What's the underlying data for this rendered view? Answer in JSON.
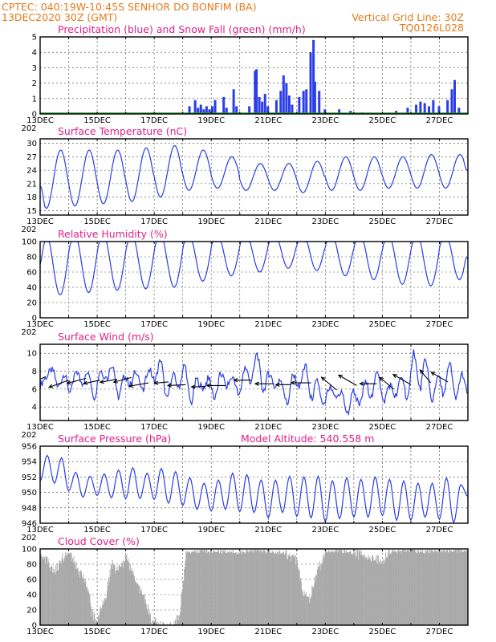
{
  "header": {
    "line1_left": "CPTEC:  040:19W-10:45S  SENHOR DO BONFIM (BA)",
    "line2_left": "13DEC2020 30Z (GMT)",
    "line2_right": "Vertical Grid Line: 30Z",
    "line3_right": "TQ0126L028"
  },
  "colors": {
    "header": "#e87a1a",
    "panel_title": "#e0208a",
    "line": "#2a3de8",
    "precip_bar": "#2a3de8",
    "snow": "#1a9a2a",
    "cloud_bar": "#a9a9a9"
  },
  "xaxis": {
    "labels": [
      "13DEC",
      "15DEC",
      "17DEC",
      "19DEC",
      "21DEC",
      "23DEC",
      "25DEC",
      "27DEC"
    ],
    "stub": "202"
  },
  "chart_data": [
    {
      "id": "precip",
      "type": "bar",
      "title": "Precipitation (blue) and Snow Fall (green) (mm/h)",
      "ylim": [
        0,
        5
      ],
      "yticks": [
        0,
        1,
        2,
        3,
        4,
        5
      ],
      "x_days": [
        0,
        15
      ],
      "grid": true,
      "bars": [
        [
          5.25,
          0.5
        ],
        [
          5.45,
          0.9
        ],
        [
          5.55,
          0.4
        ],
        [
          5.65,
          0.6
        ],
        [
          5.75,
          0.3
        ],
        [
          5.85,
          0.5
        ],
        [
          5.95,
          0.3
        ],
        [
          6.05,
          0.5
        ],
        [
          6.15,
          0.9
        ],
        [
          6.45,
          1.1
        ],
        [
          6.55,
          0.4
        ],
        [
          6.8,
          1.6
        ],
        [
          6.9,
          0.5
        ],
        [
          7.35,
          0.5
        ],
        [
          7.55,
          2.8
        ],
        [
          7.6,
          2.9
        ],
        [
          7.7,
          1.1
        ],
        [
          7.8,
          0.8
        ],
        [
          7.9,
          1.3
        ],
        [
          8.0,
          0.5
        ],
        [
          8.3,
          0.9
        ],
        [
          8.45,
          1.5
        ],
        [
          8.55,
          2.5
        ],
        [
          8.65,
          2.0
        ],
        [
          8.75,
          1.2
        ],
        [
          8.85,
          0.6
        ],
        [
          9.1,
          1.1
        ],
        [
          9.25,
          1.5
        ],
        [
          9.35,
          1.6
        ],
        [
          9.5,
          4.0
        ],
        [
          9.6,
          4.8
        ],
        [
          9.65,
          2.1
        ],
        [
          9.8,
          1.5
        ],
        [
          10.0,
          0.3
        ],
        [
          10.5,
          0.3
        ],
        [
          10.9,
          0.2
        ],
        [
          11.3,
          0.1
        ],
        [
          12.5,
          0.2
        ],
        [
          12.9,
          0.4
        ],
        [
          13.2,
          0.6
        ],
        [
          13.35,
          0.8
        ],
        [
          13.5,
          0.7
        ],
        [
          13.65,
          0.5
        ],
        [
          13.8,
          0.9
        ],
        [
          14.0,
          0.5
        ],
        [
          14.3,
          0.9
        ],
        [
          14.45,
          1.6
        ],
        [
          14.55,
          2.2
        ],
        [
          14.7,
          0.4
        ]
      ],
      "snow": 0
    },
    {
      "id": "temp",
      "type": "line",
      "title": "Surface Temperature (nC)",
      "ylim": [
        14,
        31
      ],
      "yticks": [
        15,
        18,
        21,
        24,
        27,
        30
      ],
      "x_days": [
        0,
        15
      ],
      "grid": true,
      "daily_min": [
        15.5,
        16,
        16.5,
        17,
        18,
        19.5,
        20,
        19.5,
        19.5,
        19,
        19.5,
        19.5,
        20,
        20,
        20
      ],
      "daily_max": [
        28.5,
        28.5,
        28.5,
        29,
        29.5,
        28.5,
        27,
        25.5,
        25.5,
        26,
        27,
        27,
        27,
        27.5,
        27.5
      ],
      "start": 20.5,
      "end": 24
    },
    {
      "id": "rh",
      "type": "line",
      "title": "Relative Humidity (%)",
      "ylim": [
        0,
        100
      ],
      "yticks": [
        0,
        20,
        40,
        60,
        80,
        100
      ],
      "x_days": [
        0,
        15
      ],
      "grid": true,
      "daily_min": [
        30,
        33,
        36,
        38,
        40,
        48,
        55,
        60,
        65,
        62,
        55,
        50,
        44,
        42,
        50
      ],
      "daily_max": [
        100,
        100,
        100,
        100,
        100,
        100,
        100,
        100,
        100,
        100,
        100,
        100,
        100,
        100,
        100
      ],
      "start": 70,
      "end": 78
    },
    {
      "id": "wind",
      "type": "line",
      "title": "Surface Wind (m/s)",
      "ylim": [
        2.5,
        11
      ],
      "yticks": [
        4,
        6,
        8,
        10
      ],
      "x_days": [
        0,
        15
      ],
      "grid": true,
      "speeds": [
        6.5,
        7.4,
        8.2,
        6.3,
        7.6,
        5.6,
        8.0,
        6.7,
        7.9,
        5.2,
        8.1,
        7.2,
        8.8,
        5.1,
        7.4,
        6.5,
        8.1,
        5.7,
        8.3,
        7.0,
        9.1,
        4.9,
        7.6,
        6.3,
        8.7,
        4.4,
        7.0,
        6.1,
        7.2,
        5.0,
        7.7,
        6.4,
        7.4,
        5.3,
        8.4,
        6.8,
        9.9,
        5.8,
        7.8,
        6.3,
        7.0,
        4.4,
        7.5,
        6.2,
        8.6,
        4.9,
        6.9,
        4.0,
        6.1,
        5.0,
        5.7,
        3.3,
        5.8,
        4.2,
        6.7,
        5.1,
        8.1,
        4.6,
        6.5,
        5.2,
        7.4,
        4.8,
        10.2,
        6.0,
        9.3,
        4.6,
        7.5,
        5.4,
        8.9,
        4.8,
        7.7,
        5.5
      ],
      "barbs": [
        [
          0.2,
          7.4,
          205,
          4.6
        ],
        [
          1.0,
          7.0,
          200,
          4.0
        ],
        [
          1.6,
          7.2,
          195,
          3.7
        ],
        [
          2.1,
          7.0,
          192,
          3.2
        ],
        [
          2.7,
          7.1,
          190,
          3.3
        ],
        [
          3.2,
          7.3,
          195,
          3.5
        ],
        [
          3.8,
          6.7,
          190,
          3.7
        ],
        [
          4.5,
          6.8,
          185,
          2.7
        ],
        [
          5.1,
          6.5,
          183,
          3.4
        ],
        [
          5.8,
          6.3,
          182,
          2.7
        ],
        [
          6.5,
          6.4,
          180,
          3.6
        ],
        [
          7.4,
          7.0,
          180,
          3.3
        ],
        [
          8.2,
          6.6,
          180,
          3.6
        ],
        [
          8.8,
          6.5,
          180,
          2.9
        ],
        [
          9.5,
          6.7,
          180,
          3.8
        ],
        [
          10.4,
          5.9,
          140,
          3.8
        ],
        [
          11.1,
          6.4,
          150,
          4.0
        ],
        [
          11.8,
          6.6,
          180,
          3.2
        ],
        [
          12.4,
          6.0,
          140,
          3.5
        ],
        [
          13.0,
          6.5,
          150,
          3.9
        ],
        [
          13.7,
          6.7,
          130,
          3.2
        ],
        [
          14.3,
          6.8,
          150,
          3.7
        ]
      ]
    },
    {
      "id": "pressure",
      "type": "line",
      "title": "Surface Pressure (hPa)",
      "subtitle": "Model Altitude: 540.558 m",
      "ylim": [
        946,
        956
      ],
      "yticks": [
        946,
        948,
        950,
        952,
        954,
        956
      ],
      "x_days": [
        0,
        15
      ],
      "grid": true,
      "series": [
        951.5,
        954.8,
        951.2,
        954.5,
        950.2,
        952.6,
        949.4,
        952.1,
        949.6,
        952.4,
        949.3,
        952.9,
        949.2,
        953.2,
        949.2,
        952.5,
        949.1,
        953.1,
        948.6,
        952.7,
        948.3,
        951.9,
        947.8,
        951.2,
        947.6,
        951.6,
        947.8,
        952.5,
        947.5,
        952.3,
        947.4,
        951.6,
        946.7,
        951.6,
        947.4,
        952.1,
        946.9,
        952.0,
        946.7,
        952.1,
        946.2,
        951.5,
        946.6,
        951.9,
        946.8,
        951.7,
        946.8,
        952.0,
        947.0,
        951.7,
        946.4,
        951.5,
        946.4,
        951.2,
        946.8,
        951.2,
        946.5,
        951.9,
        946.1,
        951.0,
        949.5
      ]
    },
    {
      "id": "cloud",
      "type": "bar",
      "title": "Cloud Cover (%)",
      "ylim": [
        0,
        100
      ],
      "yticks": [
        0,
        20,
        40,
        60,
        80,
        100
      ],
      "x_days": [
        0,
        15
      ],
      "grid": true,
      "profile": [
        [
          0.0,
          95
        ],
        [
          0.3,
          80
        ],
        [
          0.5,
          70
        ],
        [
          0.7,
          85
        ],
        [
          1.0,
          96
        ],
        [
          1.3,
          75
        ],
        [
          1.5,
          60
        ],
        [
          1.7,
          45
        ],
        [
          1.8,
          15
        ],
        [
          2.0,
          5
        ],
        [
          2.1,
          20
        ],
        [
          2.3,
          40
        ],
        [
          2.5,
          80
        ],
        [
          2.7,
          70
        ],
        [
          3.0,
          88
        ],
        [
          3.3,
          60
        ],
        [
          3.6,
          40
        ],
        [
          3.8,
          20
        ],
        [
          3.9,
          5
        ],
        [
          4.2,
          0
        ],
        [
          4.7,
          0
        ],
        [
          4.9,
          20
        ],
        [
          5.1,
          95
        ],
        [
          5.5,
          97
        ],
        [
          6.5,
          97
        ],
        [
          7.0,
          95
        ],
        [
          7.5,
          98
        ],
        [
          8.0,
          97
        ],
        [
          8.5,
          95
        ],
        [
          9.0,
          85
        ],
        [
          9.2,
          45
        ],
        [
          9.4,
          30
        ],
        [
          9.6,
          60
        ],
        [
          10.0,
          96
        ],
        [
          10.5,
          98
        ],
        [
          11.0,
          94
        ],
        [
          11.5,
          90
        ],
        [
          12.0,
          85
        ],
        [
          12.3,
          96
        ],
        [
          12.8,
          98
        ],
        [
          13.5,
          97
        ],
        [
          14.0,
          98
        ],
        [
          15.0,
          98
        ]
      ]
    }
  ]
}
